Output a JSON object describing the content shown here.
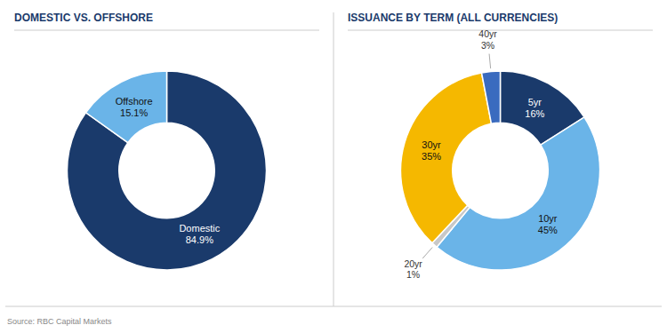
{
  "chart_data": [
    {
      "type": "donut",
      "title": "DOMESTIC VS. OFFSHORE",
      "categories": [
        "Domestic",
        "Offshore"
      ],
      "values": [
        84.9,
        15.1
      ],
      "value_labels": [
        "84.9%",
        "15.1%"
      ],
      "colors": [
        "#1a3a6b",
        "#6ab4e8"
      ],
      "data_labels": true,
      "annotations": [
        "Source: RBC Capital Markets"
      ]
    },
    {
      "type": "donut",
      "title": "ISSUANCE BY TERM (ALL CURRENCIES)",
      "categories": [
        "5yr",
        "10yr",
        "20yr",
        "30yr",
        "40yr"
      ],
      "values": [
        16,
        45,
        1,
        35,
        3
      ],
      "value_labels": [
        "16%",
        "45%",
        "1%",
        "35%",
        "3%"
      ],
      "colors": [
        "#1a3a6b",
        "#6ab4e8",
        "#c8c8c8",
        "#f5b800",
        "#3a6bbf"
      ],
      "data_labels": true
    }
  ]
}
